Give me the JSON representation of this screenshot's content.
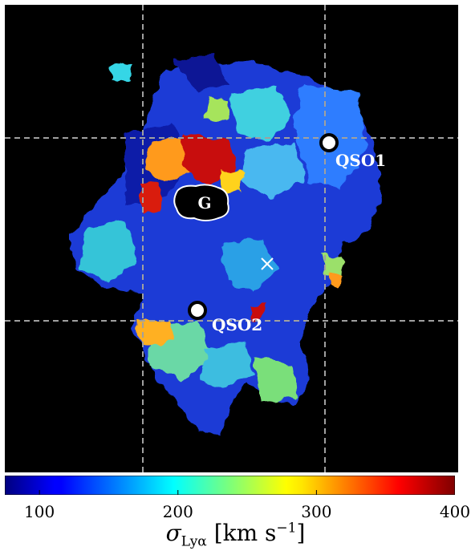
{
  "chart_data": {
    "type": "heatmap",
    "title": "",
    "quantity": "σLyα",
    "colormap": "jet",
    "colorbar": {
      "range": [
        75,
        400
      ],
      "ticks": [
        100,
        200,
        300,
        400
      ],
      "tick_labels": [
        "100",
        "200",
        "300",
        "400"
      ],
      "label": "σLyα [km s−1]",
      "label_symbol": "σ",
      "label_subscript": "Lyα",
      "label_unit": "[km s",
      "label_exponent": "−1",
      "label_close": "]"
    },
    "background_color": "#000000",
    "grid": "dashed gray crosshair lines",
    "markers": [
      {
        "label": "QSO1",
        "type": "quasar"
      },
      {
        "label": "QSO2",
        "type": "quasar"
      },
      {
        "label": "G",
        "type": "galaxy"
      },
      {
        "label": "",
        "type": "center-cross"
      }
    ]
  }
}
